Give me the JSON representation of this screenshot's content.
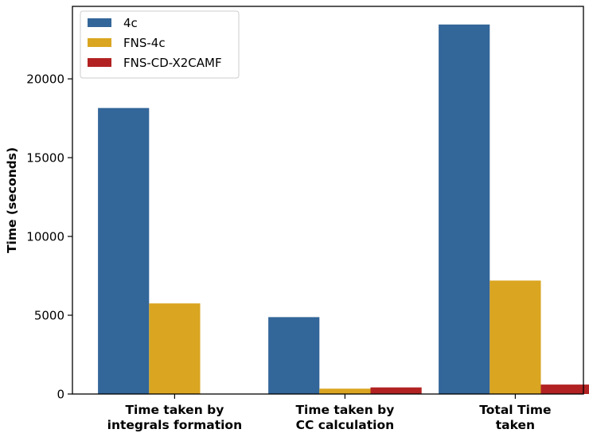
{
  "chart_data": {
    "type": "bar",
    "categories": [
      [
        "Time taken by",
        "integrals formation"
      ],
      [
        "Time taken by",
        "CC calculation"
      ],
      [
        "Total Time",
        "taken"
      ]
    ],
    "series": [
      {
        "name": "4c",
        "color": "#336699",
        "values": [
          18150,
          4880,
          23450
        ]
      },
      {
        "name": "FNS-4c",
        "color": "#DAA520",
        "values": [
          5750,
          340,
          7200
        ]
      },
      {
        "name": "FNS-CD-X2CAMF",
        "color": "#B22222",
        "values": [
          0,
          420,
          600
        ]
      }
    ],
    "title": "",
    "xlabel": "",
    "ylabel": "Time (seconds)",
    "ylim": [
      0,
      24600
    ],
    "yticks": [
      0,
      5000,
      10000,
      15000,
      20000
    ],
    "grid": false,
    "legend_position": "top-left"
  }
}
